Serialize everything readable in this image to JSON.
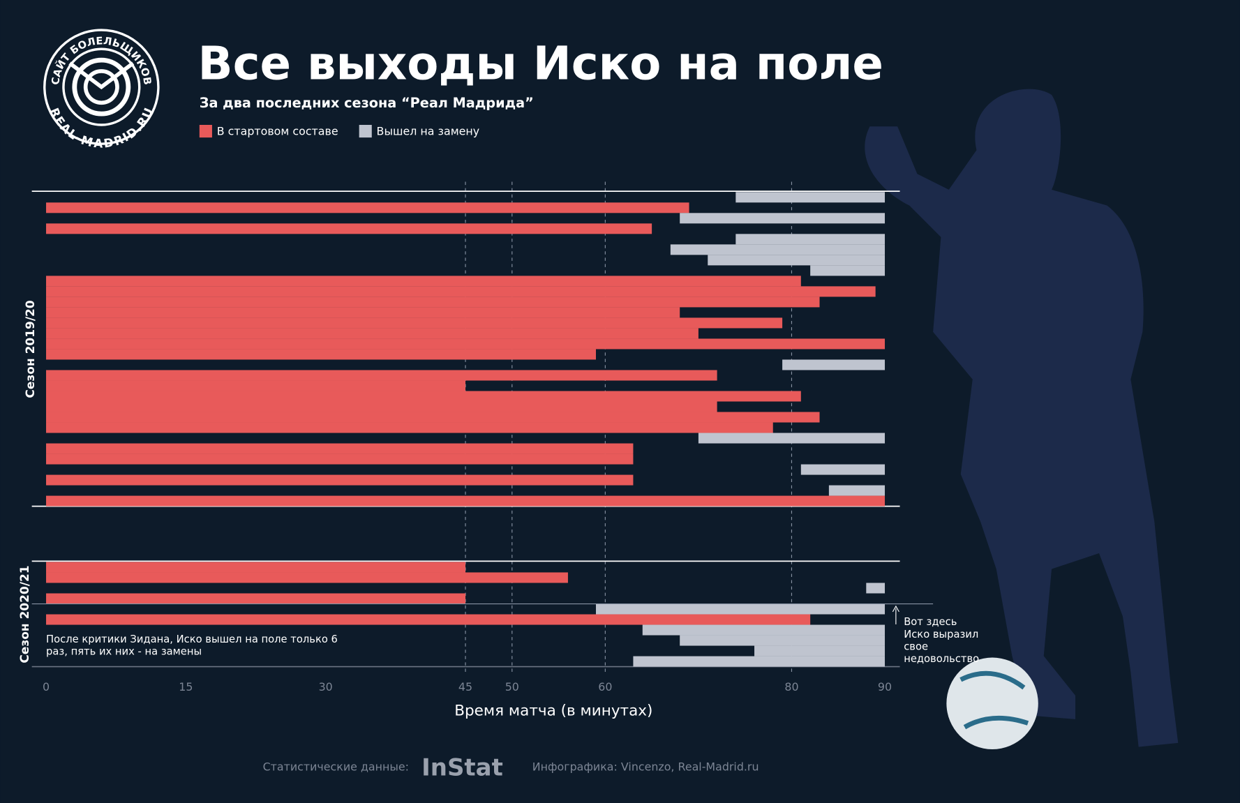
{
  "header": {
    "logo_top": "САЙТ БОЛЕЛЬЩИКОВ",
    "logo_bottom": "REAL-MADRID.RU"
  },
  "chart_data": {
    "type": "range-bar",
    "title": "Все выходы Иско на поле",
    "subtitle": "За два последних сезона “Реал Мадрида”",
    "series": [
      {
        "name": "В стартовом составе",
        "color": "#e85a5a"
      },
      {
        "name": "Вышел на замену",
        "color": "#bfc4cf"
      }
    ],
    "groups": [
      {
        "label": "Сезон 2019/20",
        "bars": [
          {
            "start": 74,
            "end": 90,
            "series": 1
          },
          {
            "start": 0,
            "end": 69,
            "series": 0
          },
          {
            "start": 68,
            "end": 90,
            "series": 1
          },
          {
            "start": 0,
            "end": 65,
            "series": 0
          },
          {
            "start": 74,
            "end": 90,
            "series": 1
          },
          {
            "start": 67,
            "end": 90,
            "series": 1
          },
          {
            "start": 71,
            "end": 90,
            "series": 1
          },
          {
            "start": 82,
            "end": 90,
            "series": 1
          },
          {
            "start": 0,
            "end": 81,
            "series": 0
          },
          {
            "start": 0,
            "end": 89,
            "series": 0
          },
          {
            "start": 0,
            "end": 83,
            "series": 0
          },
          {
            "start": 0,
            "end": 68,
            "series": 0
          },
          {
            "start": 0,
            "end": 79,
            "series": 0
          },
          {
            "start": 0,
            "end": 70,
            "series": 0
          },
          {
            "start": 0,
            "end": 90,
            "series": 0
          },
          {
            "start": 0,
            "end": 59,
            "series": 0
          },
          {
            "start": 79,
            "end": 90,
            "series": 1
          },
          {
            "start": 0,
            "end": 72,
            "series": 0
          },
          {
            "start": 0,
            "end": 45,
            "series": 0
          },
          {
            "start": 0,
            "end": 81,
            "series": 0
          },
          {
            "start": 0,
            "end": 72,
            "series": 0
          },
          {
            "start": 0,
            "end": 83,
            "series": 0
          },
          {
            "start": 0,
            "end": 78,
            "series": 0
          },
          {
            "start": 70,
            "end": 90,
            "series": 1
          },
          {
            "start": 0,
            "end": 63,
            "series": 0
          },
          {
            "start": 0,
            "end": 63,
            "series": 0
          },
          {
            "start": 81,
            "end": 90,
            "series": 1
          },
          {
            "start": 0,
            "end": 63,
            "series": 0
          },
          {
            "start": 84,
            "end": 90,
            "series": 1
          },
          {
            "start": 0,
            "end": 90,
            "series": 0
          }
        ]
      },
      {
        "label": "Сезон 2020/21",
        "bars": [
          {
            "start": 0,
            "end": 45,
            "series": 0
          },
          {
            "start": 0,
            "end": 56,
            "series": 0
          },
          {
            "start": 88,
            "end": 90,
            "series": 1
          },
          {
            "start": 0,
            "end": 45,
            "series": 0
          },
          {
            "start": 59,
            "end": 90,
            "series": 1
          },
          {
            "start": 0,
            "end": 82,
            "series": 0
          },
          {
            "start": 64,
            "end": 90,
            "series": 1
          },
          {
            "start": 68,
            "end": 90,
            "series": 1
          },
          {
            "start": 76,
            "end": 90,
            "series": 1
          },
          {
            "start": 63,
            "end": 90,
            "series": 1
          }
        ]
      }
    ],
    "xlim": [
      0,
      90
    ],
    "xticks": [
      0,
      15,
      30,
      45,
      50,
      60,
      80,
      90
    ],
    "grid_ticks": [
      45,
      50,
      60,
      80
    ],
    "xlabel": "Время матча (в минутах)",
    "annotations": [
      "Вот здесь Иско выразил свое недовольство",
      "После критики Зидана, Иско вышел на поле только 6 раз, пять их них - на замены"
    ]
  },
  "footer": {
    "source_label": "Статистические данные:",
    "source": "InStat",
    "credit": "Инфографика: Vincenzo, Real-Madrid.ru"
  }
}
